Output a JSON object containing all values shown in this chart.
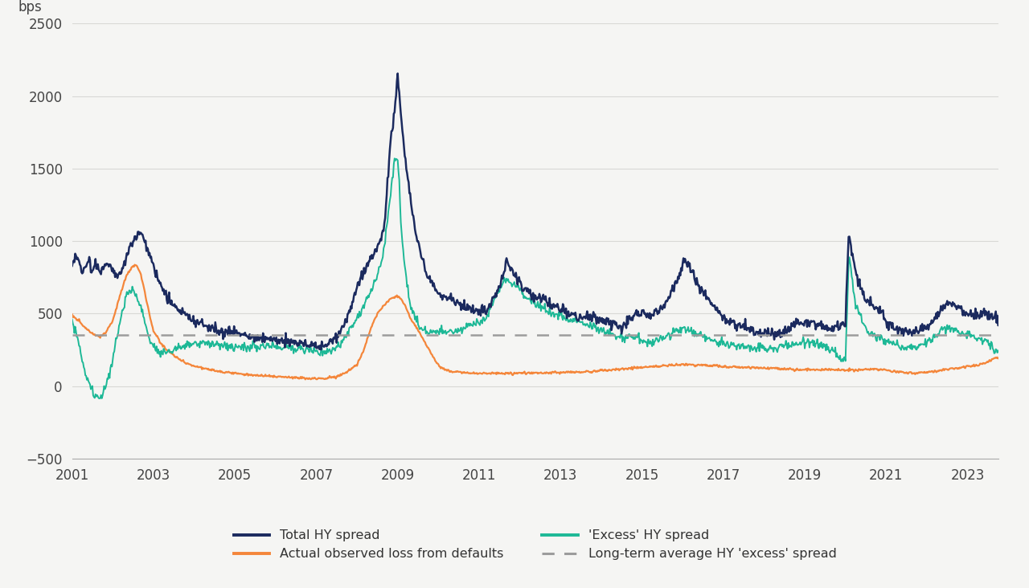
{
  "title": "",
  "ylabel": "bps",
  "xlim_start": 2001.0,
  "xlim_end": 2023.75,
  "ylim_bottom": -500,
  "ylim_top": 2500,
  "yticks": [
    -500,
    0,
    500,
    1000,
    1500,
    2000,
    2500
  ],
  "xticks": [
    2001,
    2003,
    2005,
    2007,
    2009,
    2011,
    2013,
    2015,
    2017,
    2019,
    2021,
    2023
  ],
  "long_term_avg": 355,
  "bg_color": "#f5f5f3",
  "plot_bg_color": "#f5f5f3",
  "grid_color": "#d8d8d5",
  "colors": {
    "total_hy": "#1b2a5e",
    "excess_hy": "#1db896",
    "actual_loss": "#f4863a",
    "lt_avg": "#9c9c9c"
  },
  "legend": [
    "Total HY spread",
    "Actual observed loss from defaults",
    "'Excess' HY spread",
    "Long-term average HY 'excess' spread"
  ],
  "total_hy": [
    [
      2001.0,
      820
    ],
    [
      2001.08,
      900
    ],
    [
      2001.17,
      860
    ],
    [
      2001.25,
      780
    ],
    [
      2001.33,
      830
    ],
    [
      2001.42,
      870
    ],
    [
      2001.5,
      800
    ],
    [
      2001.58,
      840
    ],
    [
      2001.67,
      780
    ],
    [
      2001.75,
      820
    ],
    [
      2001.83,
      850
    ],
    [
      2001.92,
      830
    ],
    [
      2002.0,
      800
    ],
    [
      2002.08,
      760
    ],
    [
      2002.17,
      780
    ],
    [
      2002.25,
      820
    ],
    [
      2002.33,
      880
    ],
    [
      2002.42,
      960
    ],
    [
      2002.5,
      1000
    ],
    [
      2002.58,
      1040
    ],
    [
      2002.67,
      1060
    ],
    [
      2002.75,
      1020
    ],
    [
      2002.83,
      970
    ],
    [
      2002.92,
      900
    ],
    [
      2003.0,
      820
    ],
    [
      2003.17,
      700
    ],
    [
      2003.33,
      620
    ],
    [
      2003.5,
      560
    ],
    [
      2003.67,
      520
    ],
    [
      2003.83,
      490
    ],
    [
      2004.0,
      450
    ],
    [
      2004.25,
      420
    ],
    [
      2004.5,
      390
    ],
    [
      2004.75,
      370
    ],
    [
      2005.0,
      380
    ],
    [
      2005.25,
      355
    ],
    [
      2005.5,
      340
    ],
    [
      2005.75,
      330
    ],
    [
      2006.0,
      325
    ],
    [
      2006.25,
      310
    ],
    [
      2006.5,
      305
    ],
    [
      2006.75,
      285
    ],
    [
      2007.0,
      275
    ],
    [
      2007.17,
      285
    ],
    [
      2007.33,
      300
    ],
    [
      2007.5,
      340
    ],
    [
      2007.67,
      420
    ],
    [
      2007.83,
      520
    ],
    [
      2008.0,
      680
    ],
    [
      2008.17,
      790
    ],
    [
      2008.33,
      870
    ],
    [
      2008.5,
      950
    ],
    [
      2008.67,
      1100
    ],
    [
      2008.83,
      1700
    ],
    [
      2008.92,
      1900
    ],
    [
      2009.0,
      2140
    ],
    [
      2009.08,
      1870
    ],
    [
      2009.17,
      1600
    ],
    [
      2009.25,
      1420
    ],
    [
      2009.33,
      1250
    ],
    [
      2009.5,
      980
    ],
    [
      2009.67,
      800
    ],
    [
      2009.83,
      700
    ],
    [
      2010.0,
      640
    ],
    [
      2010.17,
      610
    ],
    [
      2010.33,
      590
    ],
    [
      2010.5,
      570
    ],
    [
      2010.67,
      550
    ],
    [
      2010.83,
      530
    ],
    [
      2011.0,
      510
    ],
    [
      2011.17,
      530
    ],
    [
      2011.33,
      580
    ],
    [
      2011.5,
      680
    ],
    [
      2011.67,
      860
    ],
    [
      2011.83,
      780
    ],
    [
      2012.0,
      710
    ],
    [
      2012.17,
      660
    ],
    [
      2012.33,
      640
    ],
    [
      2012.5,
      610
    ],
    [
      2012.67,
      580
    ],
    [
      2012.83,
      550
    ],
    [
      2013.0,
      525
    ],
    [
      2013.17,
      500
    ],
    [
      2013.33,
      490
    ],
    [
      2013.5,
      475
    ],
    [
      2013.67,
      500
    ],
    [
      2013.83,
      475
    ],
    [
      2014.0,
      455
    ],
    [
      2014.17,
      440
    ],
    [
      2014.33,
      430
    ],
    [
      2014.5,
      425
    ],
    [
      2014.67,
      450
    ],
    [
      2014.83,
      490
    ],
    [
      2015.0,
      505
    ],
    [
      2015.17,
      490
    ],
    [
      2015.33,
      510
    ],
    [
      2015.5,
      540
    ],
    [
      2015.67,
      620
    ],
    [
      2015.83,
      710
    ],
    [
      2016.0,
      850
    ],
    [
      2016.08,
      870
    ],
    [
      2016.17,
      820
    ],
    [
      2016.33,
      730
    ],
    [
      2016.5,
      650
    ],
    [
      2016.67,
      590
    ],
    [
      2016.83,
      530
    ],
    [
      2017.0,
      470
    ],
    [
      2017.25,
      430
    ],
    [
      2017.5,
      400
    ],
    [
      2017.75,
      375
    ],
    [
      2018.0,
      360
    ],
    [
      2018.25,
      360
    ],
    [
      2018.5,
      375
    ],
    [
      2018.75,
      430
    ],
    [
      2019.0,
      445
    ],
    [
      2019.25,
      430
    ],
    [
      2019.5,
      405
    ],
    [
      2019.75,
      400
    ],
    [
      2020.0,
      430
    ],
    [
      2020.08,
      1060
    ],
    [
      2020.17,
      920
    ],
    [
      2020.25,
      780
    ],
    [
      2020.42,
      650
    ],
    [
      2020.58,
      580
    ],
    [
      2020.75,
      530
    ],
    [
      2020.92,
      500
    ],
    [
      2021.0,
      450
    ],
    [
      2021.25,
      400
    ],
    [
      2021.5,
      365
    ],
    [
      2021.75,
      380
    ],
    [
      2022.0,
      410
    ],
    [
      2022.17,
      455
    ],
    [
      2022.33,
      510
    ],
    [
      2022.5,
      570
    ],
    [
      2022.67,
      560
    ],
    [
      2022.83,
      530
    ],
    [
      2023.0,
      490
    ],
    [
      2023.17,
      495
    ],
    [
      2023.33,
      505
    ],
    [
      2023.5,
      490
    ],
    [
      2023.67,
      470
    ]
  ],
  "excess_hy": [
    [
      2001.0,
      460
    ],
    [
      2001.08,
      380
    ],
    [
      2001.17,
      290
    ],
    [
      2001.25,
      180
    ],
    [
      2001.33,
      80
    ],
    [
      2001.42,
      20
    ],
    [
      2001.5,
      -30
    ],
    [
      2001.58,
      -70
    ],
    [
      2001.67,
      -90
    ],
    [
      2001.75,
      -60
    ],
    [
      2001.83,
      10
    ],
    [
      2001.92,
      80
    ],
    [
      2002.0,
      180
    ],
    [
      2002.08,
      300
    ],
    [
      2002.17,
      430
    ],
    [
      2002.25,
      540
    ],
    [
      2002.33,
      620
    ],
    [
      2002.42,
      660
    ],
    [
      2002.5,
      660
    ],
    [
      2002.58,
      620
    ],
    [
      2002.67,
      560
    ],
    [
      2002.75,
      490
    ],
    [
      2002.83,
      400
    ],
    [
      2002.92,
      320
    ],
    [
      2003.0,
      260
    ],
    [
      2003.17,
      230
    ],
    [
      2003.33,
      235
    ],
    [
      2003.5,
      250
    ],
    [
      2003.67,
      270
    ],
    [
      2003.83,
      285
    ],
    [
      2004.0,
      295
    ],
    [
      2004.25,
      300
    ],
    [
      2004.5,
      290
    ],
    [
      2004.75,
      275
    ],
    [
      2005.0,
      270
    ],
    [
      2005.25,
      265
    ],
    [
      2005.5,
      270
    ],
    [
      2005.75,
      285
    ],
    [
      2006.0,
      280
    ],
    [
      2006.25,
      270
    ],
    [
      2006.5,
      265
    ],
    [
      2006.75,
      250
    ],
    [
      2007.0,
      240
    ],
    [
      2007.17,
      235
    ],
    [
      2007.33,
      245
    ],
    [
      2007.5,
      265
    ],
    [
      2007.67,
      310
    ],
    [
      2007.83,
      390
    ],
    [
      2008.0,
      470
    ],
    [
      2008.17,
      560
    ],
    [
      2008.33,
      650
    ],
    [
      2008.5,
      750
    ],
    [
      2008.67,
      950
    ],
    [
      2008.83,
      1350
    ],
    [
      2008.92,
      1560
    ],
    [
      2009.0,
      1570
    ],
    [
      2009.05,
      1350
    ],
    [
      2009.08,
      1100
    ],
    [
      2009.17,
      850
    ],
    [
      2009.25,
      650
    ],
    [
      2009.33,
      530
    ],
    [
      2009.5,
      430
    ],
    [
      2009.67,
      390
    ],
    [
      2009.83,
      375
    ],
    [
      2010.0,
      375
    ],
    [
      2010.17,
      370
    ],
    [
      2010.33,
      375
    ],
    [
      2010.5,
      390
    ],
    [
      2010.67,
      410
    ],
    [
      2010.83,
      430
    ],
    [
      2011.0,
      440
    ],
    [
      2011.17,
      470
    ],
    [
      2011.33,
      560
    ],
    [
      2011.5,
      680
    ],
    [
      2011.67,
      740
    ],
    [
      2011.83,
      710
    ],
    [
      2012.0,
      660
    ],
    [
      2012.17,
      610
    ],
    [
      2012.33,
      580
    ],
    [
      2012.5,
      550
    ],
    [
      2012.67,
      520
    ],
    [
      2012.83,
      500
    ],
    [
      2013.0,
      480
    ],
    [
      2013.17,
      465
    ],
    [
      2013.33,
      455
    ],
    [
      2013.5,
      440
    ],
    [
      2013.67,
      420
    ],
    [
      2013.83,
      405
    ],
    [
      2014.0,
      385
    ],
    [
      2014.17,
      365
    ],
    [
      2014.33,
      345
    ],
    [
      2014.5,
      340
    ],
    [
      2014.67,
      340
    ],
    [
      2014.83,
      335
    ],
    [
      2015.0,
      320
    ],
    [
      2015.17,
      305
    ],
    [
      2015.33,
      310
    ],
    [
      2015.5,
      325
    ],
    [
      2015.67,
      350
    ],
    [
      2015.83,
      380
    ],
    [
      2016.0,
      390
    ],
    [
      2016.08,
      400
    ],
    [
      2016.17,
      390
    ],
    [
      2016.33,
      370
    ],
    [
      2016.5,
      345
    ],
    [
      2016.67,
      320
    ],
    [
      2016.83,
      305
    ],
    [
      2017.0,
      290
    ],
    [
      2017.25,
      280
    ],
    [
      2017.5,
      272
    ],
    [
      2017.75,
      262
    ],
    [
      2018.0,
      258
    ],
    [
      2018.25,
      262
    ],
    [
      2018.5,
      270
    ],
    [
      2018.75,
      290
    ],
    [
      2019.0,
      305
    ],
    [
      2019.25,
      295
    ],
    [
      2019.5,
      270
    ],
    [
      2019.67,
      245
    ],
    [
      2019.83,
      195
    ],
    [
      2020.0,
      185
    ],
    [
      2020.08,
      870
    ],
    [
      2020.13,
      840
    ],
    [
      2020.17,
      720
    ],
    [
      2020.25,
      570
    ],
    [
      2020.42,
      440
    ],
    [
      2020.58,
      375
    ],
    [
      2020.75,
      345
    ],
    [
      2020.92,
      325
    ],
    [
      2021.0,
      305
    ],
    [
      2021.25,
      285
    ],
    [
      2021.5,
      270
    ],
    [
      2021.67,
      268
    ],
    [
      2021.83,
      280
    ],
    [
      2022.0,
      300
    ],
    [
      2022.17,
      335
    ],
    [
      2022.33,
      385
    ],
    [
      2022.5,
      410
    ],
    [
      2022.67,
      395
    ],
    [
      2022.83,
      370
    ],
    [
      2023.0,
      350
    ],
    [
      2023.17,
      340
    ],
    [
      2023.33,
      325
    ],
    [
      2023.5,
      305
    ],
    [
      2023.67,
      255
    ]
  ],
  "actual_loss": [
    [
      2001.0,
      490
    ],
    [
      2001.17,
      450
    ],
    [
      2001.33,
      400
    ],
    [
      2001.5,
      360
    ],
    [
      2001.67,
      340
    ],
    [
      2001.83,
      370
    ],
    [
      2002.0,
      450
    ],
    [
      2002.17,
      620
    ],
    [
      2002.33,
      760
    ],
    [
      2002.5,
      830
    ],
    [
      2002.58,
      830
    ],
    [
      2002.67,
      790
    ],
    [
      2002.75,
      700
    ],
    [
      2002.83,
      590
    ],
    [
      2002.92,
      470
    ],
    [
      2003.0,
      380
    ],
    [
      2003.17,
      300
    ],
    [
      2003.33,
      250
    ],
    [
      2003.5,
      210
    ],
    [
      2003.67,
      180
    ],
    [
      2003.83,
      155
    ],
    [
      2004.0,
      140
    ],
    [
      2004.25,
      120
    ],
    [
      2004.5,
      105
    ],
    [
      2004.75,
      95
    ],
    [
      2005.0,
      90
    ],
    [
      2005.25,
      82
    ],
    [
      2005.5,
      76
    ],
    [
      2005.75,
      70
    ],
    [
      2006.0,
      65
    ],
    [
      2006.25,
      60
    ],
    [
      2006.5,
      58
    ],
    [
      2006.75,
      55
    ],
    [
      2007.0,
      52
    ],
    [
      2007.25,
      55
    ],
    [
      2007.5,
      65
    ],
    [
      2007.75,
      95
    ],
    [
      2008.0,
      150
    ],
    [
      2008.17,
      250
    ],
    [
      2008.33,
      390
    ],
    [
      2008.5,
      500
    ],
    [
      2008.67,
      560
    ],
    [
      2008.83,
      600
    ],
    [
      2009.0,
      620
    ],
    [
      2009.08,
      600
    ],
    [
      2009.17,
      560
    ],
    [
      2009.25,
      510
    ],
    [
      2009.33,
      460
    ],
    [
      2009.5,
      390
    ],
    [
      2009.67,
      300
    ],
    [
      2009.83,
      220
    ],
    [
      2010.0,
      140
    ],
    [
      2010.17,
      115
    ],
    [
      2010.33,
      100
    ],
    [
      2010.5,
      95
    ],
    [
      2010.67,
      90
    ],
    [
      2010.83,
      88
    ],
    [
      2011.0,
      88
    ],
    [
      2011.25,
      88
    ],
    [
      2011.5,
      88
    ],
    [
      2011.75,
      88
    ],
    [
      2012.0,
      90
    ],
    [
      2012.25,
      90
    ],
    [
      2012.5,
      90
    ],
    [
      2012.75,
      92
    ],
    [
      2013.0,
      94
    ],
    [
      2013.25,
      96
    ],
    [
      2013.5,
      98
    ],
    [
      2013.75,
      100
    ],
    [
      2014.0,
      105
    ],
    [
      2014.25,
      112
    ],
    [
      2014.5,
      118
    ],
    [
      2014.75,
      125
    ],
    [
      2015.0,
      130
    ],
    [
      2015.25,
      135
    ],
    [
      2015.5,
      140
    ],
    [
      2015.75,
      145
    ],
    [
      2016.0,
      150
    ],
    [
      2016.25,
      148
    ],
    [
      2016.5,
      144
    ],
    [
      2016.75,
      140
    ],
    [
      2017.0,
      136
    ],
    [
      2017.25,
      132
    ],
    [
      2017.5,
      130
    ],
    [
      2017.75,
      128
    ],
    [
      2018.0,
      125
    ],
    [
      2018.25,
      122
    ],
    [
      2018.5,
      118
    ],
    [
      2018.75,
      115
    ],
    [
      2019.0,
      112
    ],
    [
      2019.25,
      112
    ],
    [
      2019.5,
      113
    ],
    [
      2019.75,
      112
    ],
    [
      2020.0,
      110
    ],
    [
      2020.25,
      112
    ],
    [
      2020.5,
      115
    ],
    [
      2020.75,
      118
    ],
    [
      2021.0,
      110
    ],
    [
      2021.25,
      100
    ],
    [
      2021.5,
      92
    ],
    [
      2021.75,
      90
    ],
    [
      2022.0,
      95
    ],
    [
      2022.25,
      105
    ],
    [
      2022.5,
      115
    ],
    [
      2022.75,
      125
    ],
    [
      2023.0,
      135
    ],
    [
      2023.25,
      145
    ],
    [
      2023.5,
      165
    ],
    [
      2023.67,
      195
    ]
  ]
}
